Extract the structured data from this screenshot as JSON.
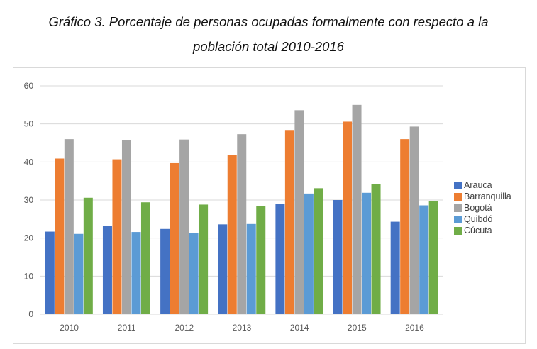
{
  "title_line1": "Gráfico 3. Porcentaje de personas ocupadas formalmente con respecto a la",
  "title_line2": "población total 2010-2016",
  "chart_data": {
    "type": "bar",
    "title": "Gráfico 3. Porcentaje de personas ocupadas formalmente con respecto a la población total 2010-2016",
    "categories": [
      "2010",
      "2011",
      "2012",
      "2013",
      "2014",
      "2015",
      "2016"
    ],
    "ylim": [
      0,
      60
    ],
    "yticks": [
      0,
      10,
      20,
      30,
      40,
      50,
      60
    ],
    "grid": true,
    "legend": "right",
    "series": [
      {
        "name": "Arauca",
        "color": "#4472c4",
        "values": [
          21.7,
          23.2,
          22.4,
          23.6,
          28.9,
          30.0,
          24.3
        ]
      },
      {
        "name": "Barranquilla",
        "color": "#ed7d31",
        "values": [
          40.9,
          40.7,
          39.7,
          41.9,
          48.4,
          50.6,
          46.0
        ]
      },
      {
        "name": "Bogotá",
        "color": "#a5a5a5",
        "values": [
          46.0,
          45.7,
          45.9,
          47.3,
          53.6,
          55.0,
          49.3
        ]
      },
      {
        "name": "Quibdó",
        "color": "#5b9bd5",
        "values": [
          21.1,
          21.6,
          21.4,
          23.7,
          31.7,
          31.9,
          28.6
        ]
      },
      {
        "name": "Cúcuta",
        "color": "#70ad47",
        "values": [
          30.6,
          29.4,
          28.8,
          28.4,
          33.1,
          34.2,
          29.8
        ]
      }
    ]
  }
}
